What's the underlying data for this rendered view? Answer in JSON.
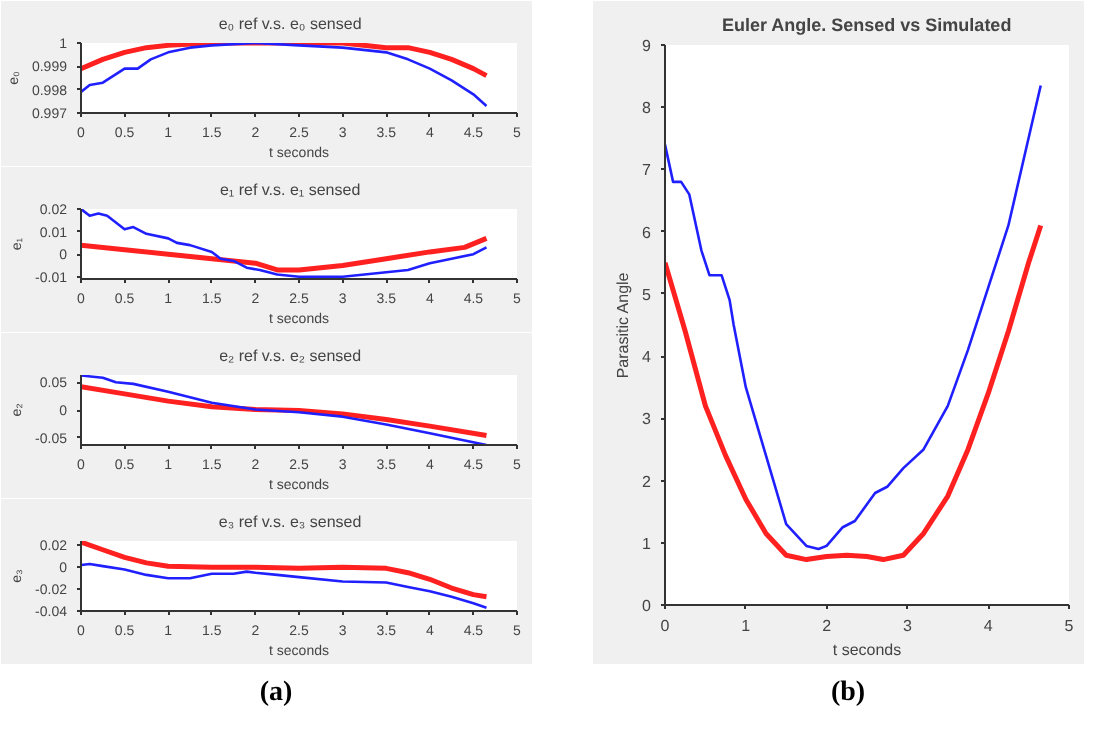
{
  "chart_data": [
    {
      "type": "line",
      "title": "e₀  ref  v.s.  e₀  sensed",
      "xlabel": "t seconds",
      "ylabel": "e₀",
      "xlim": [
        0,
        5
      ],
      "ylim": [
        0.997,
        1
      ],
      "xticks": [
        0,
        0.5,
        1,
        1.5,
        2,
        2.5,
        3,
        3.5,
        4,
        4.5,
        5
      ],
      "yticks": [
        0.997,
        0.998,
        0.999,
        1
      ],
      "series": [
        {
          "color": "#ff2020",
          "x": [
            0,
            0.25,
            0.5,
            0.75,
            1,
            1.5,
            2,
            2.5,
            3,
            3.5,
            3.75,
            4,
            4.25,
            4.5,
            4.65
          ],
          "values": [
            0.9989,
            0.9993,
            0.9996,
            0.9998,
            0.9999,
            1.0,
            1.0,
            1.0,
            1.0,
            0.9998,
            0.9998,
            0.9996,
            0.9993,
            0.9989,
            0.9986
          ]
        },
        {
          "color": "#2020ff",
          "x": [
            0,
            0.1,
            0.25,
            0.5,
            0.65,
            0.8,
            1,
            1.25,
            1.5,
            2,
            2.5,
            3,
            3.5,
            3.75,
            4,
            4.25,
            4.5,
            4.65
          ],
          "values": [
            0.9979,
            0.9982,
            0.9983,
            0.9989,
            0.9989,
            0.9993,
            0.9996,
            0.9998,
            0.9999,
            1.0,
            0.9999,
            0.9998,
            0.9996,
            0.9993,
            0.9989,
            0.9984,
            0.9978,
            0.9973
          ]
        }
      ]
    },
    {
      "type": "line",
      "title": "e₁  ref  v.s.  e₁  sensed",
      "xlabel": "t seconds",
      "ylabel": "e₁",
      "xlim": [
        0,
        5
      ],
      "ylim": [
        -0.011,
        0.02
      ],
      "xticks": [
        0,
        0.5,
        1,
        1.5,
        2,
        2.5,
        3,
        3.5,
        4,
        4.5,
        5
      ],
      "yticks": [
        -0.01,
        0,
        0.01,
        0.02
      ],
      "series": [
        {
          "color": "#ff2020",
          "x": [
            0,
            0.5,
            1,
            1.5,
            2,
            2.25,
            2.5,
            3,
            3.5,
            4,
            4.4,
            4.65
          ],
          "values": [
            0.004,
            0.002,
            0.0,
            -0.002,
            -0.004,
            -0.007,
            -0.007,
            -0.005,
            -0.002,
            0.001,
            0.003,
            0.007
          ]
        },
        {
          "color": "#2020ff",
          "x": [
            0,
            0.1,
            0.2,
            0.3,
            0.5,
            0.6,
            0.75,
            1,
            1.1,
            1.25,
            1.5,
            1.6,
            1.75,
            1.9,
            2.05,
            2.25,
            2.5,
            2.75,
            3,
            3.25,
            3.5,
            3.75,
            4,
            4.25,
            4.5,
            4.65
          ],
          "values": [
            0.02,
            0.017,
            0.018,
            0.017,
            0.011,
            0.012,
            0.009,
            0.007,
            0.005,
            0.004,
            0.001,
            -0.002,
            -0.003,
            -0.006,
            -0.007,
            -0.009,
            -0.01,
            -0.01,
            -0.01,
            -0.009,
            -0.008,
            -0.007,
            -0.004,
            -0.002,
            0.0,
            0.003
          ]
        }
      ]
    },
    {
      "type": "line",
      "title": "e₂  ref  v.s.  e₂  sensed",
      "xlabel": "t seconds",
      "ylabel": "e₂",
      "xlim": [
        0,
        5
      ],
      "ylim": [
        -0.063,
        0.063
      ],
      "xticks": [
        0,
        0.5,
        1,
        1.5,
        2,
        2.5,
        3,
        3.5,
        4,
        4.5,
        5
      ],
      "yticks": [
        -0.05,
        0,
        0.05
      ],
      "series": [
        {
          "color": "#ff2020",
          "x": [
            0,
            0.5,
            1,
            1.5,
            2,
            2.5,
            3,
            3.5,
            4,
            4.65
          ],
          "values": [
            0.042,
            0.029,
            0.016,
            0.006,
            0.001,
            -0.001,
            -0.007,
            -0.017,
            -0.029,
            -0.046
          ]
        },
        {
          "color": "#2020ff",
          "x": [
            0,
            0.25,
            0.4,
            0.6,
            1,
            1.5,
            2,
            2.5,
            3,
            3.5,
            4,
            4.65
          ],
          "values": [
            0.062,
            0.058,
            0.05,
            0.047,
            0.033,
            0.013,
            0.001,
            -0.004,
            -0.012,
            -0.026,
            -0.042,
            -0.063
          ]
        }
      ]
    },
    {
      "type": "line",
      "title": "e₃  ref  v.s.  e₃  sensed",
      "xlabel": "t seconds",
      "ylabel": "e₃",
      "xlim": [
        0,
        5
      ],
      "ylim": [
        -0.04,
        0.024
      ],
      "xticks": [
        0,
        0.5,
        1,
        1.5,
        2,
        2.5,
        3,
        3.5,
        4,
        4.5,
        5
      ],
      "yticks": [
        -0.04,
        -0.02,
        0,
        0.02
      ],
      "annotations": [
        "(a)"
      ],
      "series": [
        {
          "color": "#ff2020",
          "x": [
            0,
            0.25,
            0.5,
            0.75,
            1,
            1.5,
            2,
            2.5,
            3,
            3.5,
            3.75,
            4,
            4.25,
            4.5,
            4.65
          ],
          "values": [
            0.023,
            0.016,
            0.009,
            0.004,
            0.001,
            0,
            0,
            -0.001,
            0,
            -0.001,
            -0.005,
            -0.011,
            -0.019,
            -0.025,
            -0.027
          ]
        },
        {
          "color": "#2020ff",
          "x": [
            0,
            0.1,
            0.25,
            0.5,
            0.75,
            1,
            1.25,
            1.5,
            1.75,
            1.9,
            2,
            2.25,
            2.5,
            3,
            3.5,
            3.75,
            4,
            4.25,
            4.5,
            4.65
          ],
          "values": [
            0.002,
            0.003,
            0.001,
            -0.002,
            -0.007,
            -0.01,
            -0.01,
            -0.006,
            -0.006,
            -0.004,
            -0.005,
            -0.007,
            -0.009,
            -0.013,
            -0.014,
            -0.018,
            -0.022,
            -0.027,
            -0.033,
            -0.037
          ]
        }
      ]
    },
    {
      "type": "line",
      "title": "Euler Angle. Sensed vs Simulated",
      "xlabel": "t seconds",
      "ylabel": "Parasitic Angle",
      "xlim": [
        0,
        5
      ],
      "ylim": [
        0,
        9
      ],
      "xticks": [
        0,
        1,
        2,
        3,
        4,
        5
      ],
      "yticks": [
        0,
        1,
        2,
        3,
        4,
        5,
        6,
        7,
        8,
        9
      ],
      "annotations": [
        "(b)"
      ],
      "series": [
        {
          "color": "#ff2020",
          "x": [
            0,
            0.25,
            0.5,
            0.75,
            1,
            1.25,
            1.5,
            1.75,
            2,
            2.25,
            2.5,
            2.7,
            2.95,
            3.2,
            3.5,
            3.75,
            4,
            4.25,
            4.5,
            4.65
          ],
          "values": [
            5.5,
            4.4,
            3.2,
            2.4,
            1.7,
            1.15,
            0.8,
            0.73,
            0.78,
            0.8,
            0.78,
            0.73,
            0.8,
            1.15,
            1.75,
            2.5,
            3.4,
            4.4,
            5.5,
            6.1
          ]
        },
        {
          "color": "#2020ff",
          "x": [
            0,
            0.1,
            0.2,
            0.3,
            0.45,
            0.55,
            0.7,
            0.8,
            0.85,
            1,
            1.25,
            1.5,
            1.75,
            1.9,
            2.0,
            2.2,
            2.35,
            2.6,
            2.75,
            2.95,
            3.2,
            3.5,
            3.75,
            4,
            4.25,
            4.65
          ],
          "values": [
            7.4,
            6.8,
            6.8,
            6.6,
            5.7,
            5.3,
            5.3,
            4.9,
            4.5,
            3.5,
            2.4,
            1.3,
            0.95,
            0.9,
            0.95,
            1.25,
            1.35,
            1.8,
            1.9,
            2.2,
            2.5,
            3.2,
            4.1,
            5.1,
            6.1,
            8.35
          ]
        }
      ]
    }
  ]
}
